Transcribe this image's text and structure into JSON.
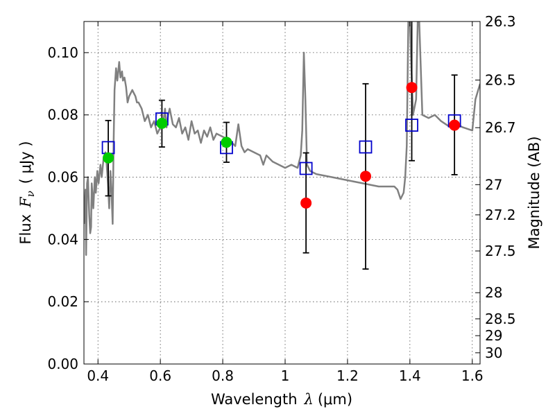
{
  "chart_data": {
    "type": "scatter",
    "title": "",
    "xlabel": {
      "prefix": "Wavelength",
      "symbol": "λ",
      "unit": "(μm)"
    },
    "ylabel": {
      "prefix": "Flux",
      "symbol": "F",
      "subscript": "ν",
      "unit": "( μJy )"
    },
    "ylabel_right": "Magnitude (AB)",
    "xlim": [
      0.355,
      1.625
    ],
    "ylim": [
      0.0,
      0.11
    ],
    "x_ticks": [
      0.4,
      0.6,
      0.8,
      1.0,
      1.2,
      1.4,
      1.6
    ],
    "x_tick_labels": [
      "0.4",
      "0.6",
      "0.8",
      "1",
      "1.2",
      "1.4",
      "1.6"
    ],
    "y_ticks": [
      0.0,
      0.02,
      0.04,
      0.06,
      0.08,
      0.1
    ],
    "y_tick_labels": [
      "0.00",
      "0.02",
      "0.04",
      "0.06",
      "0.08",
      "0.10"
    ],
    "mag_ticks": [
      {
        "label": "26.3",
        "flux": 0.11
      },
      {
        "label": "26.5",
        "flux": 0.0912
      },
      {
        "label": "26.7",
        "flux": 0.0759
      },
      {
        "label": "27",
        "flux": 0.0576
      },
      {
        "label": "27.2",
        "flux": 0.0479
      },
      {
        "label": "27.5",
        "flux": 0.0363
      },
      {
        "label": "28",
        "flux": 0.0229
      },
      {
        "label": "28.5",
        "flux": 0.0145
      },
      {
        "label": "29",
        "flux": 0.0091
      },
      {
        "label": "30",
        "flux": 0.0036
      }
    ],
    "grid": true,
    "colors": {
      "model": "#808080",
      "model_points": "#0000cc",
      "detected": "#00cc00",
      "photometry": "#ff0000",
      "errorbar": "#000000"
    },
    "model_spectrum": {
      "x": [
        0.355,
        0.36,
        0.362,
        0.365,
        0.368,
        0.372,
        0.375,
        0.378,
        0.38,
        0.385,
        0.39,
        0.393,
        0.398,
        0.402,
        0.408,
        0.412,
        0.418,
        0.424,
        0.428,
        0.432,
        0.436,
        0.44,
        0.443,
        0.447,
        0.45,
        0.453,
        0.458,
        0.462,
        0.468,
        0.472,
        0.477,
        0.48,
        0.485,
        0.49,
        0.495,
        0.5,
        0.51,
        0.515,
        0.52,
        0.525,
        0.53,
        0.54,
        0.55,
        0.56,
        0.57,
        0.58,
        0.59,
        0.6,
        0.61,
        0.615,
        0.62,
        0.625,
        0.63,
        0.64,
        0.65,
        0.66,
        0.67,
        0.68,
        0.69,
        0.7,
        0.71,
        0.72,
        0.73,
        0.74,
        0.75,
        0.76,
        0.77,
        0.78,
        0.8,
        0.82,
        0.84,
        0.85,
        0.86,
        0.87,
        0.88,
        0.9,
        0.92,
        0.93,
        0.94,
        0.95,
        0.96,
        0.98,
        1.0,
        1.02,
        1.04,
        1.05,
        1.055,
        1.06,
        1.065,
        1.07,
        1.08,
        1.1,
        1.15,
        1.2,
        1.25,
        1.3,
        1.35,
        1.36,
        1.37,
        1.38,
        1.385,
        1.39,
        1.395,
        1.4,
        1.41,
        1.42,
        1.425,
        1.43,
        1.44,
        1.46,
        1.48,
        1.5,
        1.53,
        1.55,
        1.57,
        1.6,
        1.61,
        1.625
      ],
      "y": [
        0.045,
        0.056,
        0.035,
        0.058,
        0.06,
        0.048,
        0.042,
        0.044,
        0.058,
        0.05,
        0.06,
        0.055,
        0.062,
        0.058,
        0.064,
        0.06,
        0.066,
        0.068,
        0.064,
        0.058,
        0.05,
        0.062,
        0.056,
        0.045,
        0.07,
        0.088,
        0.095,
        0.091,
        0.097,
        0.092,
        0.094,
        0.091,
        0.092,
        0.089,
        0.084,
        0.086,
        0.088,
        0.087,
        0.086,
        0.084,
        0.084,
        0.082,
        0.078,
        0.08,
        0.076,
        0.078,
        0.074,
        0.076,
        0.078,
        0.082,
        0.076,
        0.08,
        0.082,
        0.077,
        0.076,
        0.079,
        0.074,
        0.076,
        0.072,
        0.078,
        0.074,
        0.075,
        0.071,
        0.075,
        0.073,
        0.076,
        0.072,
        0.074,
        0.073,
        0.072,
        0.07,
        0.077,
        0.07,
        0.068,
        0.069,
        0.068,
        0.067,
        0.064,
        0.067,
        0.066,
        0.065,
        0.064,
        0.063,
        0.064,
        0.063,
        0.067,
        0.075,
        0.1,
        0.085,
        0.064,
        0.062,
        0.061,
        0.06,
        0.059,
        0.058,
        0.057,
        0.057,
        0.056,
        0.053,
        0.055,
        0.06,
        0.07,
        0.11,
        0.11,
        0.08,
        0.085,
        0.11,
        0.11,
        0.08,
        0.079,
        0.08,
        0.078,
        0.076,
        0.077,
        0.076,
        0.075,
        0.085,
        0.09
      ]
    },
    "model_points": {
      "x": [
        0.433,
        0.605,
        0.812,
        1.067,
        1.258,
        1.406,
        1.543
      ],
      "y": [
        0.0695,
        0.0787,
        0.0695,
        0.0628,
        0.0697,
        0.0767,
        0.0781
      ]
    },
    "detections": {
      "x": [
        0.433,
        0.605,
        0.812
      ],
      "y": [
        0.0662,
        0.0773,
        0.0712
      ],
      "yerr_low": [
        0.054,
        0.0697,
        0.0648
      ],
      "yerr_high": [
        0.0782,
        0.0847,
        0.0776
      ]
    },
    "photometry": {
      "x": [
        1.067,
        1.258,
        1.406,
        1.543
      ],
      "y": [
        0.0517,
        0.0603,
        0.0888,
        0.0767
      ],
      "yerr_low": [
        0.0357,
        0.0305,
        0.0653,
        0.0608
      ],
      "yerr_high": [
        0.0678,
        0.09,
        0.11,
        0.0928
      ]
    }
  }
}
